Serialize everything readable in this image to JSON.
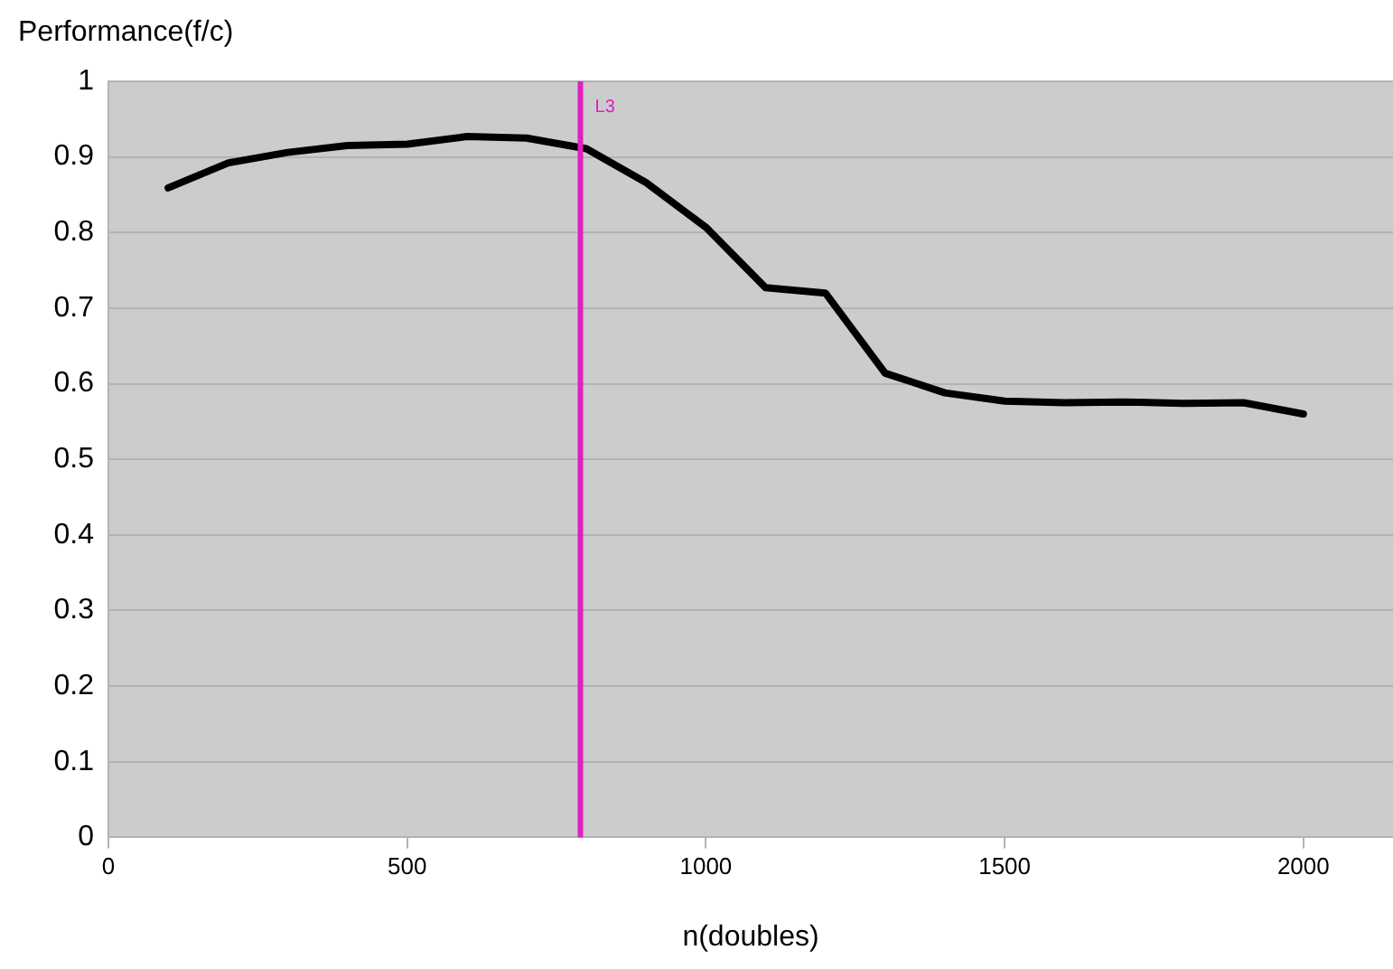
{
  "chart_data": {
    "type": "line",
    "ylabel": "Performance(f/c)",
    "xlabel": "n(doubles)",
    "x": [
      100,
      200,
      300,
      400,
      500,
      600,
      700,
      800,
      900,
      1000,
      1100,
      1200,
      1300,
      1400,
      1500,
      1600,
      1700,
      1800,
      1900,
      2000
    ],
    "series": [
      {
        "color": "#000000",
        "values": [
          0.859,
          0.892,
          0.906,
          0.915,
          0.917,
          0.927,
          0.925,
          0.911,
          0.866,
          0.807,
          0.727,
          0.72,
          0.614,
          0.588,
          0.577,
          0.575,
          0.576,
          0.574,
          0.575,
          0.56
        ]
      }
    ],
    "xlim": [
      0,
      2150
    ],
    "xticks": [
      0,
      500,
      1000,
      1500,
      2000
    ],
    "ylim": [
      0,
      1
    ],
    "yticks": [
      0,
      0.1,
      0.2,
      0.3,
      0.4,
      0.5,
      0.6,
      0.7,
      0.8,
      0.9,
      1
    ],
    "ref_lines": [
      {
        "axis": "x",
        "value": 790,
        "label": "L3",
        "color": "#e020c0"
      }
    ],
    "grid": "y",
    "legend": false,
    "marker": "none",
    "line_style": "solid"
  }
}
